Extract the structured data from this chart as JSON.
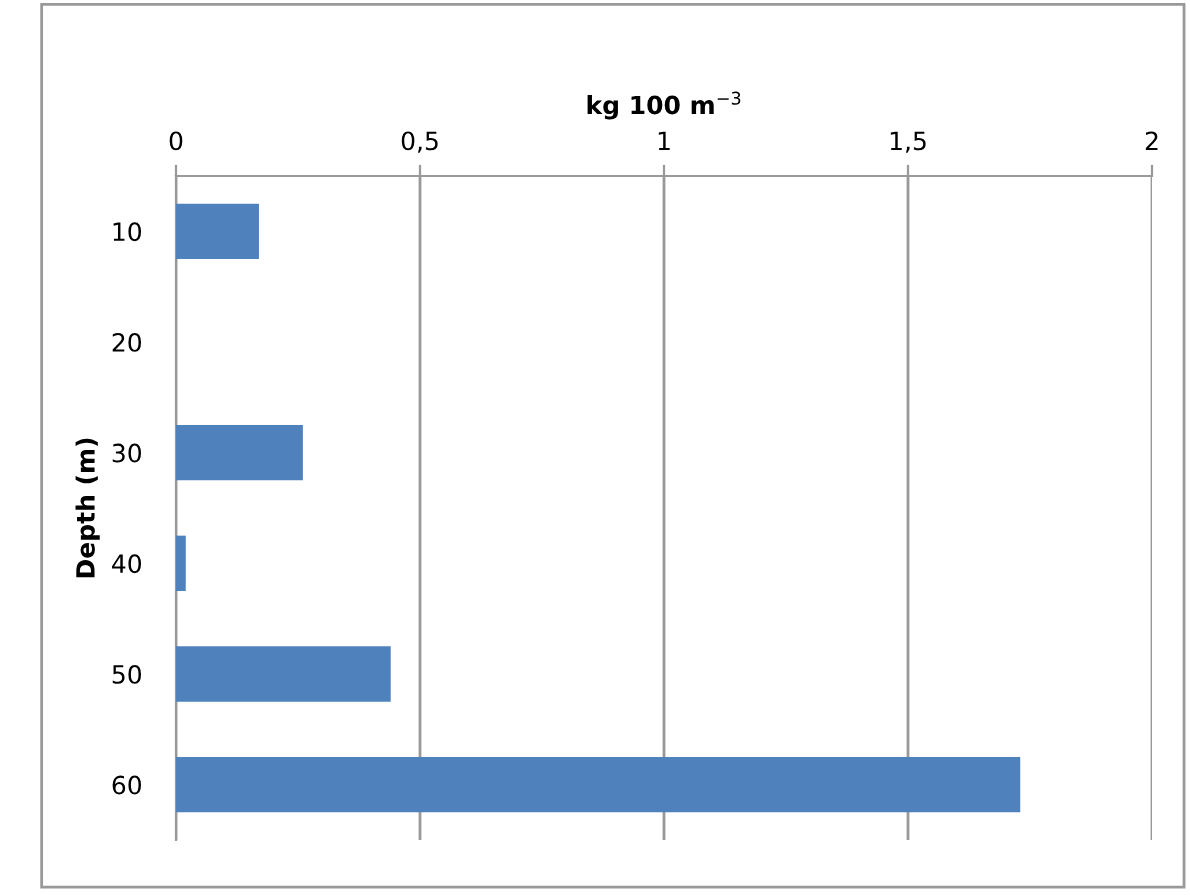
{
  "chart_data": {
    "type": "bar",
    "orientation": "horizontal",
    "xlabel": "kg 100 m$^{−3}$",
    "ylabel": "Depth (m)",
    "categories": [
      "10",
      "20",
      "30",
      "40",
      "50",
      "60"
    ],
    "values": [
      0.17,
      null,
      0.26,
      0.02,
      0.44,
      1.73
    ],
    "color": "#4f81bd",
    "xlim": [
      0,
      2
    ],
    "xticks": [
      0,
      {
        "value": 0.5,
        "label": "0,5"
      },
      1,
      {
        "value": 1.5,
        "label": "1,5"
      },
      2
    ],
    "grid": "x"
  }
}
